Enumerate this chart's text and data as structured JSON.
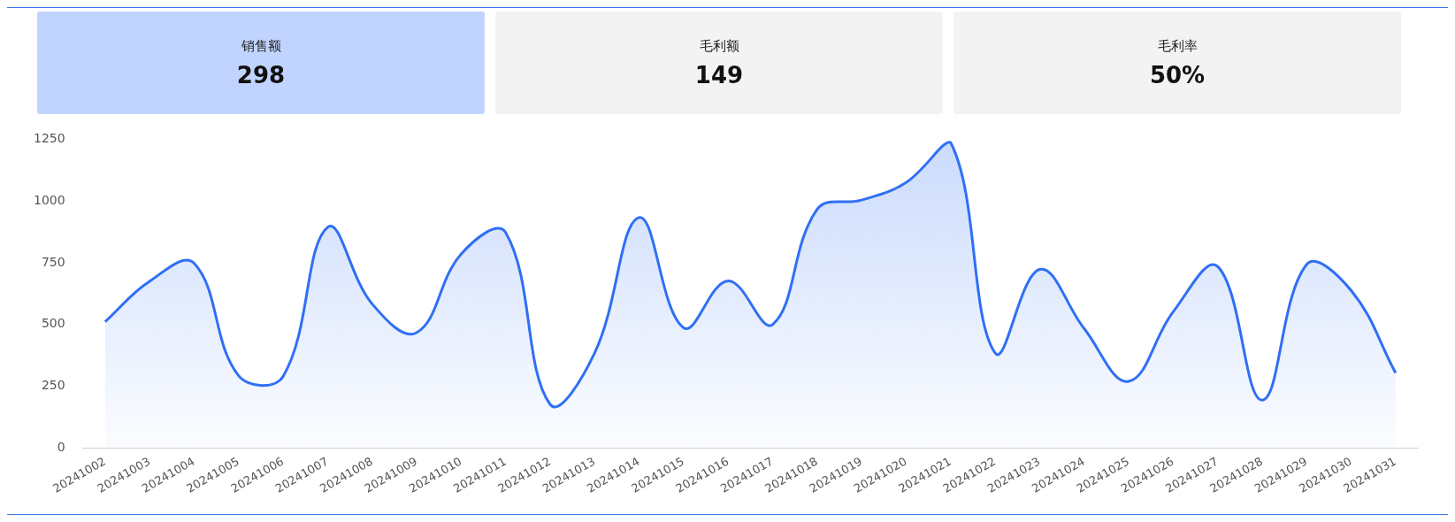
{
  "chart_data": [
    {
      "type": "other",
      "title": "销售额",
      "annotations": [
        "298"
      ],
      "color": "#c0d4ff"
    },
    {
      "type": "other",
      "title": "毛利额",
      "annotations": [
        "149"
      ],
      "color": "#f3f3f3"
    },
    {
      "type": "other",
      "title": "毛利率",
      "annotations": [
        "50%"
      ],
      "color": "#f3f3f3"
    },
    {
      "type": "area",
      "categories": [
        "20241002",
        "20241003",
        "20241004",
        "20241005",
        "20241006",
        "20241007",
        "20241008",
        "20241009",
        "20241010",
        "20241011",
        "20241012",
        "20241013",
        "20241014",
        "20241015",
        "20241016",
        "20241017",
        "20241018",
        "20241019",
        "20241020",
        "20241021",
        "20241022",
        "20241023",
        "20241024",
        "20241025",
        "20241026",
        "20241027",
        "20241028",
        "20241029",
        "20241030",
        "20241031"
      ],
      "values": [
        511,
        675,
        748,
        293,
        290,
        894,
        584,
        467,
        785,
        873,
        177,
        384,
        933,
        487,
        677,
        500,
        966,
        1004,
        1075,
        1237,
        385,
        723,
        484,
        270,
        551,
        735,
        194,
        743,
        638,
        304
      ],
      "color": "#2f6ff5",
      "ylim": [
        0,
        1250
      ],
      "yticks": [
        0,
        250,
        500,
        750,
        1000,
        1250
      ],
      "grid": false
    }
  ]
}
